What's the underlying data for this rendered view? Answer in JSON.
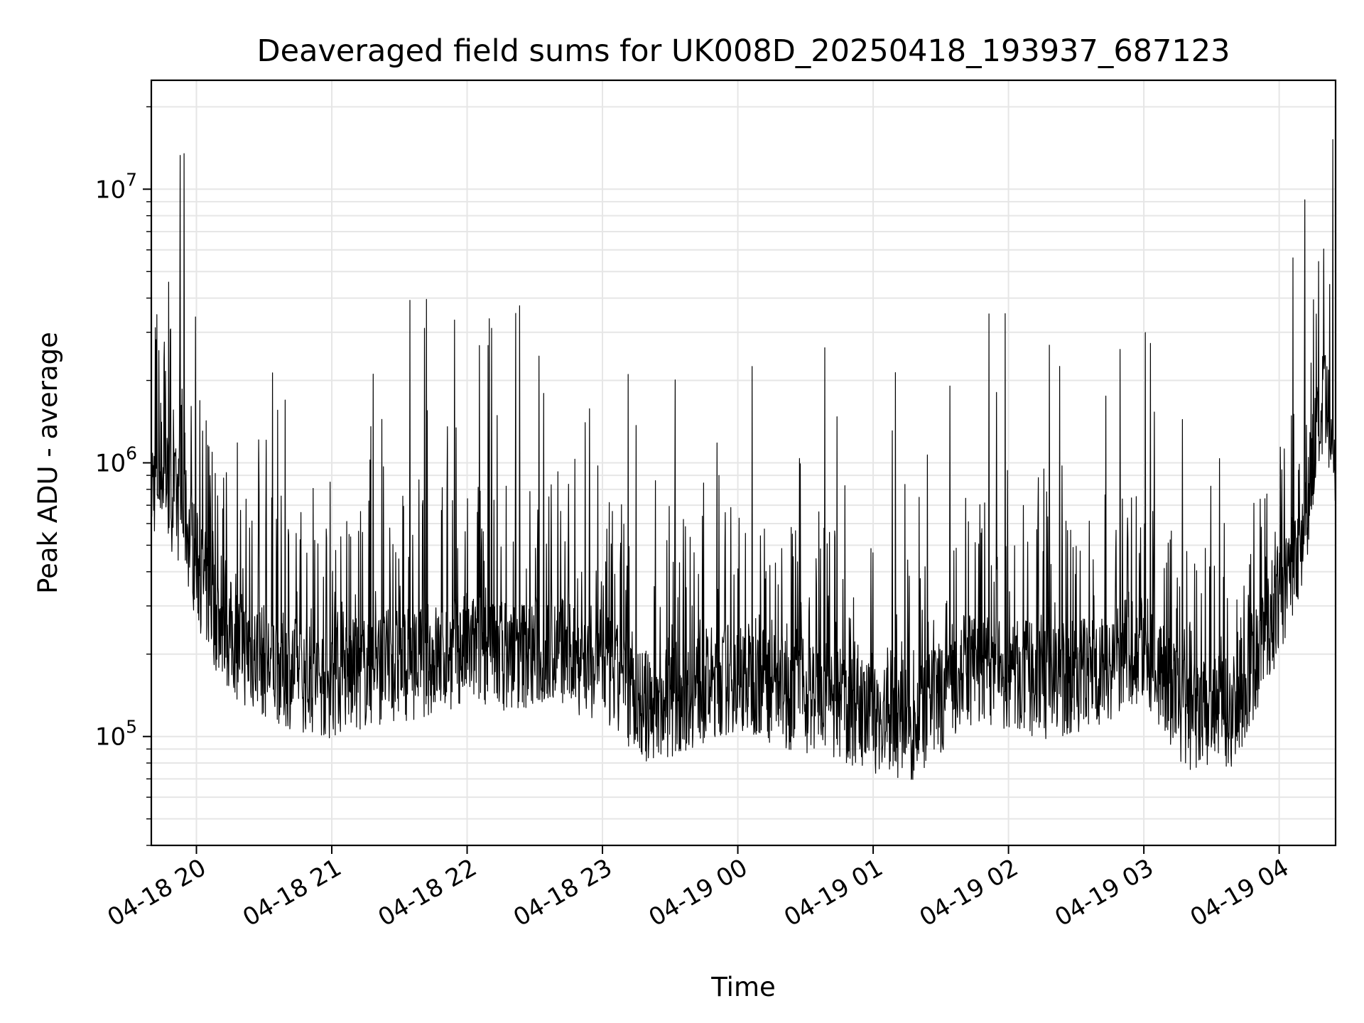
{
  "chart_data": {
    "type": "line",
    "title": "Deaveraged field sums for UK008D_20250418_193937_687123",
    "xlabel": "Time",
    "ylabel": "Peak ADU - average",
    "yscale": "log",
    "grid": true,
    "line_color": "#000000",
    "xlim": [
      "2025-04-18T19:40:00",
      "2025-04-19T04:25:00"
    ],
    "ylim": [
      40000,
      25000000
    ],
    "x_ticks": [
      {
        "value": "2025-04-18T20:00:00",
        "label": "04-18 20"
      },
      {
        "value": "2025-04-18T21:00:00",
        "label": "04-18 21"
      },
      {
        "value": "2025-04-18T22:00:00",
        "label": "04-18 22"
      },
      {
        "value": "2025-04-18T23:00:00",
        "label": "04-18 23"
      },
      {
        "value": "2025-04-19T00:00:00",
        "label": "04-19 00"
      },
      {
        "value": "2025-04-19T01:00:00",
        "label": "04-19 01"
      },
      {
        "value": "2025-04-19T02:00:00",
        "label": "04-19 02"
      },
      {
        "value": "2025-04-19T03:00:00",
        "label": "04-19 03"
      },
      {
        "value": "2025-04-19T04:00:00",
        "label": "04-19 04"
      }
    ],
    "y_ticks": [
      {
        "value": 100000,
        "base": "10",
        "exp": "5"
      },
      {
        "value": 1000000,
        "base": "10",
        "exp": "6"
      },
      {
        "value": 10000000,
        "base": "10",
        "exp": "7"
      }
    ],
    "series": [
      {
        "x": [
          "2025-04-18T19:40:00",
          "2025-04-18T19:45:00",
          "2025-04-18T19:50:00",
          "2025-04-18T19:55:00",
          "2025-04-18T20:00:00",
          "2025-04-18T20:10:00",
          "2025-04-18T20:20:00",
          "2025-04-18T20:30:00",
          "2025-04-18T20:45:00",
          "2025-04-18T21:00:00",
          "2025-04-18T21:20:00",
          "2025-04-18T21:40:00",
          "2025-04-18T22:00:00",
          "2025-04-18T22:20:00",
          "2025-04-18T22:40:00",
          "2025-04-18T23:00:00",
          "2025-04-18T23:20:00",
          "2025-04-18T23:40:00",
          "2025-04-19T00:00:00",
          "2025-04-19T00:20:00",
          "2025-04-19T00:40:00",
          "2025-04-19T01:00:00",
          "2025-04-19T01:20:00",
          "2025-04-19T01:40:00",
          "2025-04-19T02:00:00",
          "2025-04-19T02:20:00",
          "2025-04-19T02:40:00",
          "2025-04-19T03:00:00",
          "2025-04-19T03:20:00",
          "2025-04-19T03:40:00",
          "2025-04-19T04:00:00",
          "2025-04-19T04:10:00",
          "2025-04-19T04:15:00",
          "2025-04-19T04:20:00",
          "2025-04-19T04:25:00"
        ],
        "y": [
          800000,
          900000,
          700000,
          600000,
          400000,
          250000,
          200000,
          180000,
          160000,
          150000,
          170000,
          180000,
          200000,
          190000,
          200000,
          170000,
          120000,
          140000,
          160000,
          140000,
          130000,
          110000,
          105000,
          170000,
          160000,
          150000,
          170000,
          200000,
          110000,
          120000,
          300000,
          500000,
          1000000,
          1600000,
          900000
        ]
      }
    ]
  }
}
